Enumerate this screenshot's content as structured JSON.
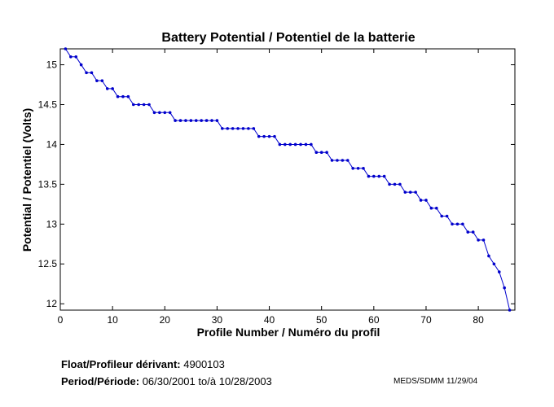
{
  "chart_data": {
    "type": "line",
    "title": "Battery Potential / Potentiel de la batterie",
    "xlabel": "Profile Number / Numéro du profil",
    "ylabel": "Potential / Potentiel (Volts)",
    "xlim": [
      0,
      87
    ],
    "ylim": [
      11.92,
      15.2
    ],
    "x_ticks": [
      0,
      10,
      20,
      30,
      40,
      50,
      60,
      70,
      80
    ],
    "x_tick_labels": [
      "0",
      "10",
      "20",
      "30",
      "40",
      "50",
      "60",
      "70",
      "80"
    ],
    "y_ticks": [
      12,
      12.5,
      13,
      13.5,
      14,
      14.5,
      15
    ],
    "y_tick_labels": [
      "12",
      "12.5",
      "13",
      "13.5",
      "14",
      "14.5",
      "15"
    ],
    "grid": false,
    "legend": "none",
    "color": "#0000cc",
    "series": [
      {
        "x": [
          1,
          2,
          3,
          4,
          5,
          6,
          7,
          8,
          9,
          10,
          11,
          12,
          13,
          14,
          15,
          16,
          17,
          18,
          19,
          20,
          21,
          22,
          23,
          24,
          25,
          26,
          27,
          28,
          29,
          30,
          31,
          32,
          33,
          34,
          35,
          36,
          37,
          38,
          39,
          40,
          41,
          42,
          43,
          44,
          45,
          46,
          47,
          48,
          49,
          50,
          51,
          52,
          53,
          54,
          55,
          56,
          57,
          58,
          59,
          60,
          61,
          62,
          63,
          64,
          65,
          66,
          67,
          68,
          69,
          70,
          71,
          72,
          73,
          74,
          75,
          76,
          77,
          78,
          79,
          80,
          81,
          82,
          83,
          84,
          85,
          86
        ],
        "y": [
          15.2,
          15.1,
          15.1,
          15.0,
          14.9,
          14.9,
          14.8,
          14.8,
          14.7,
          14.7,
          14.6,
          14.6,
          14.6,
          14.5,
          14.5,
          14.5,
          14.5,
          14.4,
          14.4,
          14.4,
          14.4,
          14.3,
          14.3,
          14.3,
          14.3,
          14.3,
          14.3,
          14.3,
          14.3,
          14.3,
          14.2,
          14.2,
          14.2,
          14.2,
          14.2,
          14.2,
          14.2,
          14.1,
          14.1,
          14.1,
          14.1,
          14.0,
          14.0,
          14.0,
          14.0,
          14.0,
          14.0,
          14.0,
          13.9,
          13.9,
          13.9,
          13.8,
          13.8,
          13.8,
          13.8,
          13.7,
          13.7,
          13.7,
          13.6,
          13.6,
          13.6,
          13.6,
          13.5,
          13.5,
          13.5,
          13.4,
          13.4,
          13.4,
          13.3,
          13.3,
          13.2,
          13.2,
          13.1,
          13.1,
          13.0,
          13.0,
          13.0,
          12.9,
          12.9,
          12.8,
          12.8,
          12.6,
          12.5,
          12.4,
          12.2,
          11.92
        ]
      }
    ]
  },
  "footer": {
    "float_label": "Float/Profileur dérivant:",
    "float_value": "4900103",
    "period_label": "Period/Période:",
    "period_start": "06/30/2001",
    "period_to": "to/à",
    "period_end": "10/28/2003",
    "credit": "MEDS/SDMM  11/29/04"
  }
}
